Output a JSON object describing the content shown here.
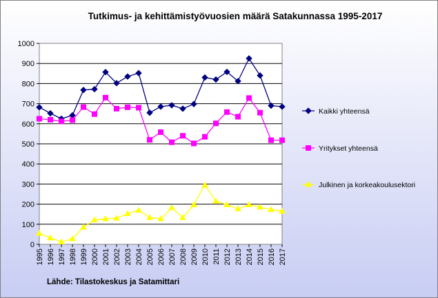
{
  "chart_data": {
    "type": "line",
    "title": "Tutkimus- ja kehittämistyövuosien määrä Satakunnassa 1995-2017",
    "xlabel": "",
    "ylabel": "",
    "ylim": [
      0,
      1000
    ],
    "yticks": [
      "0",
      "100",
      "200",
      "300",
      "400",
      "500",
      "600",
      "700",
      "800",
      "900",
      "1000"
    ],
    "grid": "horizontal",
    "legend_position": "right",
    "categories": [
      "1995",
      "1996",
      "1997",
      "1998",
      "1999",
      "2000",
      "2001",
      "2002",
      "2003",
      "2004",
      "2005",
      "2006",
      "2007",
      "2008",
      "2009",
      "2010",
      "2011",
      "2012",
      "2013",
      "2014",
      "2015",
      "2016",
      "2017"
    ],
    "series": [
      {
        "name": "Kaikki yhteensä",
        "color": "#000080",
        "marker": "diamond",
        "values": [
          682,
          652,
          625,
          642,
          768,
          772,
          857,
          802,
          835,
          852,
          655,
          685,
          692,
          675,
          698,
          830,
          820,
          858,
          812,
          925,
          840,
          690,
          685
        ]
      },
      {
        "name": "Yritykset yhteensä",
        "color": "#ff00ff",
        "marker": "square",
        "values": [
          625,
          620,
          612,
          618,
          683,
          648,
          730,
          675,
          682,
          680,
          520,
          558,
          508,
          540,
          502,
          535,
          602,
          658,
          635,
          728,
          655,
          518,
          518
        ]
      },
      {
        "name": "Julkinen ja korkeakoulusektori",
        "color": "#ffff00",
        "marker": "triangle",
        "values": [
          55,
          32,
          12,
          28,
          85,
          122,
          127,
          130,
          153,
          170,
          133,
          127,
          182,
          133,
          197,
          295,
          215,
          197,
          177,
          197,
          185,
          173,
          165
        ]
      }
    ],
    "source_note": "Lähde: Tilastokeskus ja Satamittari"
  }
}
